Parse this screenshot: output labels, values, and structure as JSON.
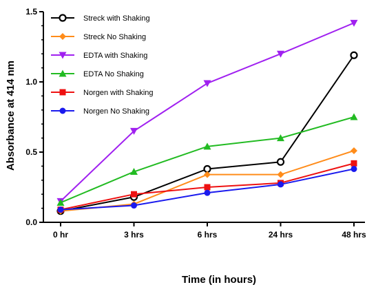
{
  "chart_data": {
    "type": "line",
    "title": "",
    "xlabel": "Time (in hours)",
    "ylabel": "Absorbance at 414 nm",
    "categories": [
      "0 hr",
      "3 hrs",
      "6 hrs",
      "24 hrs",
      "48 hrs"
    ],
    "ylim": [
      0,
      1.5
    ],
    "yticks": [
      "0.0",
      "0.5",
      "1.0",
      "1.5"
    ],
    "grid": false,
    "legend_position": "top-left",
    "series": [
      {
        "name": "Streck with Shaking",
        "color": "#000000",
        "marker": "open-circle",
        "values": [
          0.08,
          0.18,
          0.38,
          0.43,
          1.19
        ]
      },
      {
        "name": "Streck No Shaking",
        "color": "#ff8c1a",
        "marker": "diamond",
        "values": [
          0.08,
          0.13,
          0.34,
          0.34,
          0.51
        ]
      },
      {
        "name": "EDTA with Shaking",
        "color": "#a020f0",
        "marker": "triangle-down",
        "values": [
          0.15,
          0.65,
          0.99,
          1.2,
          1.42
        ]
      },
      {
        "name": "EDTA No Shaking",
        "color": "#22bb22",
        "marker": "triangle-up",
        "values": [
          0.14,
          0.36,
          0.54,
          0.6,
          0.75
        ]
      },
      {
        "name": "Norgen with Shaking",
        "color": "#ee1111",
        "marker": "square",
        "values": [
          0.09,
          0.2,
          0.25,
          0.28,
          0.42
        ]
      },
      {
        "name": "Norgen No Shaking",
        "color": "#1a1aee",
        "marker": "circle",
        "values": [
          0.09,
          0.12,
          0.21,
          0.27,
          0.38
        ]
      }
    ]
  }
}
